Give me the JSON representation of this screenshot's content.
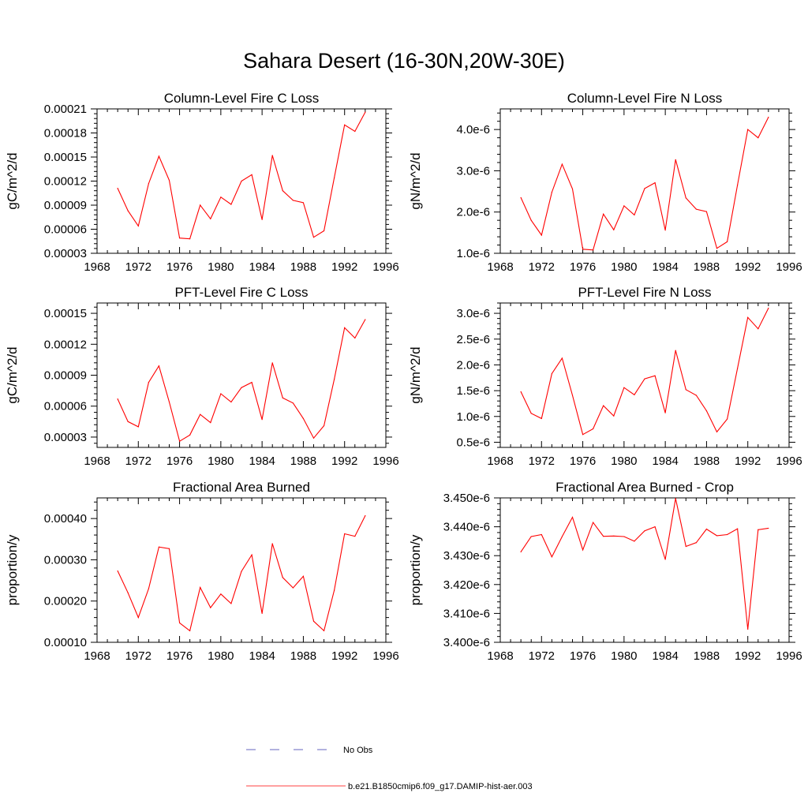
{
  "figure": {
    "title": "Sahara Desert (16-30N,20W-30E)"
  },
  "legend": {
    "items": [
      {
        "label": "No Obs",
        "color": "#3333aa",
        "dashed": true
      },
      {
        "label": "b.e21.B1850cmip6.f09_g17.DAMIP-hist-aer.003",
        "color": "#ff0000",
        "dashed": false
      }
    ]
  },
  "chart_data": [
    {
      "type": "line",
      "title": "Column-Level Fire C Loss",
      "ylabel": "gC/m^2/d",
      "xlim": [
        1968,
        1996
      ],
      "xticks": [
        1968,
        1972,
        1976,
        1980,
        1984,
        1988,
        1992,
        1996
      ],
      "ylim": [
        3e-05,
        0.00021
      ],
      "yticks": [
        3e-05,
        6e-05,
        9e-05,
        0.00012,
        0.00015,
        0.00018,
        0.00021
      ],
      "ytick_labels": [
        "0.00003",
        "0.00006",
        "0.00009",
        "0.00012",
        "0.00015",
        "0.00018",
        "0.00021"
      ],
      "x": [
        1970,
        1971,
        1972,
        1973,
        1974,
        1975,
        1976,
        1977,
        1978,
        1979,
        1980,
        1981,
        1982,
        1983,
        1984,
        1985,
        1986,
        1987,
        1988,
        1989,
        1990,
        1991,
        1992,
        1993,
        1994
      ],
      "series": [
        {
          "color": "#ff0000",
          "values": [
            0.000111,
            8.3e-05,
            6.4e-05,
            0.000117,
            0.000151,
            0.000121,
            4.9e-05,
            4.8e-05,
            9e-05,
            7.3e-05,
            0.0001,
            9.1e-05,
            0.00012,
            0.000128,
            7.2e-05,
            0.000152,
            0.000108,
            9.6e-05,
            9.3e-05,
            5e-05,
            5.8e-05,
            0.000124,
            0.00019,
            0.000182,
            0.000206
          ]
        }
      ]
    },
    {
      "type": "line",
      "title": "Column-Level Fire N Loss",
      "ylabel": "gN/m^2/d",
      "xlim": [
        1968,
        1996
      ],
      "xticks": [
        1968,
        1972,
        1976,
        1980,
        1984,
        1988,
        1992,
        1996
      ],
      "ylim": [
        1e-06,
        4.5e-06
      ],
      "yticks": [
        1e-06,
        2e-06,
        3e-06,
        4e-06
      ],
      "ytick_labels": [
        "1.0e-6",
        "2.0e-6",
        "3.0e-6",
        "4.0e-6"
      ],
      "x": [
        1970,
        1971,
        1972,
        1973,
        1974,
        1975,
        1976,
        1977,
        1978,
        1979,
        1980,
        1981,
        1982,
        1983,
        1984,
        1985,
        1986,
        1987,
        1988,
        1989,
        1990,
        1991,
        1992,
        1993,
        1994
      ],
      "series": [
        {
          "color": "#ff0000",
          "values": [
            2.35e-06,
            1.8e-06,
            1.44e-06,
            2.48e-06,
            3.16e-06,
            2.56e-06,
            1.1e-06,
            1.08e-06,
            1.95e-06,
            1.57e-06,
            2.15e-06,
            1.93e-06,
            2.57e-06,
            2.71e-06,
            1.56e-06,
            3.27e-06,
            2.34e-06,
            2.07e-06,
            2.01e-06,
            1.12e-06,
            1.28e-06,
            2.65e-06,
            4e-06,
            3.8e-06,
            4.3e-06
          ]
        }
      ]
    },
    {
      "type": "line",
      "title": "PFT-Level Fire C Loss",
      "ylabel": "gC/m^2/d",
      "xlim": [
        1968,
        1996
      ],
      "xticks": [
        1968,
        1972,
        1976,
        1980,
        1984,
        1988,
        1992,
        1996
      ],
      "ylim": [
        2e-05,
        0.00016
      ],
      "yticks": [
        3e-05,
        6e-05,
        9e-05,
        0.00012,
        0.00015
      ],
      "ytick_labels": [
        "0.00003",
        "0.00006",
        "0.00009",
        "0.00012",
        "0.00015"
      ],
      "x": [
        1970,
        1971,
        1972,
        1973,
        1974,
        1975,
        1976,
        1977,
        1978,
        1979,
        1980,
        1981,
        1982,
        1983,
        1984,
        1985,
        1986,
        1987,
        1988,
        1989,
        1990,
        1991,
        1992,
        1993,
        1994
      ],
      "series": [
        {
          "color": "#ff0000",
          "values": [
            6.7e-05,
            4.5e-05,
            4e-05,
            8.3e-05,
            9.9e-05,
            6.4e-05,
            2.6e-05,
            3.2e-05,
            5.2e-05,
            4.4e-05,
            7.2e-05,
            6.4e-05,
            7.8e-05,
            8.3e-05,
            4.7e-05,
            0.000102,
            6.8e-05,
            6.3e-05,
            4.8e-05,
            2.9e-05,
            4.1e-05,
            8.6e-05,
            0.000136,
            0.000126,
            0.000144
          ]
        }
      ]
    },
    {
      "type": "line",
      "title": "PFT-Level Fire N Loss",
      "ylabel": "gN/m^2/d",
      "xlim": [
        1968,
        1996
      ],
      "xticks": [
        1968,
        1972,
        1976,
        1980,
        1984,
        1988,
        1992,
        1996
      ],
      "ylim": [
        4e-07,
        3.2e-06
      ],
      "yticks": [
        5e-07,
        1e-06,
        1.5e-06,
        2e-06,
        2.5e-06,
        3e-06
      ],
      "ytick_labels": [
        "0.5e-6",
        "1.0e-6",
        "1.5e-6",
        "2.0e-6",
        "2.5e-6",
        "3.0e-6"
      ],
      "x": [
        1970,
        1971,
        1972,
        1973,
        1974,
        1975,
        1976,
        1977,
        1978,
        1979,
        1980,
        1981,
        1982,
        1983,
        1984,
        1985,
        1986,
        1987,
        1988,
        1989,
        1990,
        1991,
        1992,
        1993,
        1994
      ],
      "series": [
        {
          "color": "#ff0000",
          "values": [
            1.48e-06,
            1.06e-06,
            9.6e-07,
            1.83e-06,
            2.13e-06,
            1.41e-06,
            6.5e-07,
            7.6e-07,
            1.21e-06,
            1.01e-06,
            1.56e-06,
            1.42e-06,
            1.73e-06,
            1.79e-06,
            1.07e-06,
            2.28e-06,
            1.52e-06,
            1.41e-06,
            1.11e-06,
            7e-07,
            9.5e-07,
            1.93e-06,
            2.92e-06,
            2.7e-06,
            3.1e-06
          ]
        }
      ]
    },
    {
      "type": "line",
      "title": "Fractional Area Burned",
      "ylabel": "proportion/y",
      "xlim": [
        1968,
        1996
      ],
      "xticks": [
        1968,
        1972,
        1976,
        1980,
        1984,
        1988,
        1992,
        1996
      ],
      "ylim": [
        0.0001,
        0.00045
      ],
      "yticks": [
        0.0001,
        0.0002,
        0.0003,
        0.0004
      ],
      "ytick_labels": [
        "0.00010",
        "0.00020",
        "0.00030",
        "0.00040"
      ],
      "x": [
        1970,
        1971,
        1972,
        1973,
        1974,
        1975,
        1976,
        1977,
        1978,
        1979,
        1980,
        1981,
        1982,
        1983,
        1984,
        1985,
        1986,
        1987,
        1988,
        1989,
        1990,
        1991,
        1992,
        1993,
        1994
      ],
      "series": [
        {
          "color": "#ff0000",
          "values": [
            0.000273,
            0.00022,
            0.00016,
            0.00023,
            0.000331,
            0.000327,
            0.000147,
            0.000128,
            0.000233,
            0.000184,
            0.000217,
            0.000194,
            0.000272,
            0.000312,
            0.00017,
            0.000339,
            0.000257,
            0.000232,
            0.00026,
            0.000151,
            0.000128,
            0.000226,
            0.000363,
            0.000357,
            0.000407
          ]
        }
      ]
    },
    {
      "type": "line",
      "title": "Fractional Area Burned - Crop",
      "ylabel": "proportion/y",
      "xlim": [
        1968,
        1996
      ],
      "xticks": [
        1968,
        1972,
        1976,
        1980,
        1984,
        1988,
        1992,
        1996
      ],
      "ylim": [
        3.4e-06,
        3.45e-06
      ],
      "yticks": [
        3.4e-06,
        3.41e-06,
        3.42e-06,
        3.43e-06,
        3.44e-06,
        3.45e-06
      ],
      "ytick_labels": [
        "3.400e-6",
        "3.410e-6",
        "3.420e-6",
        "3.430e-6",
        "3.440e-6",
        "3.450e-6"
      ],
      "x": [
        1970,
        1971,
        1972,
        1973,
        1974,
        1975,
        1976,
        1977,
        1978,
        1979,
        1980,
        1981,
        1982,
        1983,
        1984,
        1985,
        1986,
        1987,
        1988,
        1989,
        1990,
        1991,
        1992,
        1993,
        1994
      ],
      "series": [
        {
          "color": "#ff0000",
          "values": [
            3.4313e-06,
            3.4366e-06,
            3.4373e-06,
            3.4296e-06,
            3.4366e-06,
            3.4433e-06,
            3.432e-06,
            3.4415e-06,
            3.4367e-06,
            3.4368e-06,
            3.4366e-06,
            3.435e-06,
            3.4386e-06,
            3.44e-06,
            3.4287e-06,
            3.4498e-06,
            3.4332e-06,
            3.4345e-06,
            3.4392e-06,
            3.4369e-06,
            3.4373e-06,
            3.4393e-06,
            3.4045e-06,
            3.439e-06,
            3.4395e-06
          ]
        }
      ]
    }
  ]
}
